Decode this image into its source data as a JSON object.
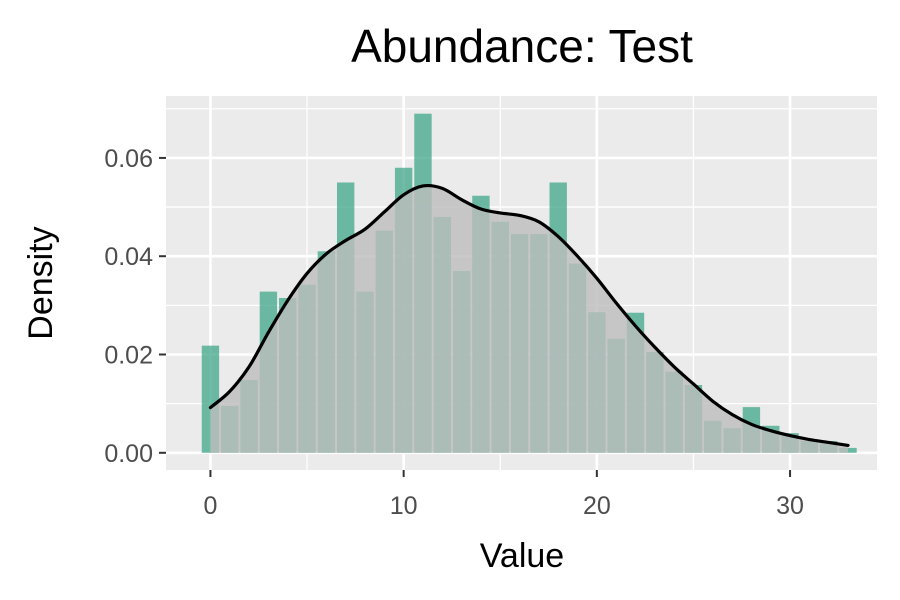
{
  "chart_data": {
    "type": "bar",
    "title": "Abundance: Test",
    "xlabel": "Value",
    "ylabel": "Density",
    "xlim": [
      -2.3,
      34.5
    ],
    "ylim": [
      -0.0035,
      0.0726
    ],
    "x_ticks": [
      {
        "value": 0,
        "label": "0"
      },
      {
        "value": 10,
        "label": "10"
      },
      {
        "value": 20,
        "label": "20"
      },
      {
        "value": 30,
        "label": "30"
      }
    ],
    "y_ticks": [
      {
        "value": 0.0,
        "label": "0.00"
      },
      {
        "value": 0.02,
        "label": "0.02"
      },
      {
        "value": 0.04,
        "label": "0.04"
      },
      {
        "value": 0.06,
        "label": "0.06"
      }
    ],
    "grid": true,
    "histogram": {
      "series_name": "",
      "color": "#3FA58A",
      "opacity": 0.75,
      "bin_width": 1,
      "x": [
        0,
        1,
        2,
        3,
        4,
        5,
        6,
        7,
        8,
        9,
        10,
        11,
        12,
        13,
        14,
        15,
        16,
        17,
        18,
        19,
        20,
        21,
        22,
        23,
        24,
        25,
        26,
        27,
        28,
        29,
        30,
        31,
        32,
        33
      ],
      "values": [
        0.0218,
        0.0095,
        0.0148,
        0.0328,
        0.0315,
        0.0342,
        0.041,
        0.055,
        0.0328,
        0.0452,
        0.058,
        0.069,
        0.048,
        0.037,
        0.0523,
        0.047,
        0.0445,
        0.0445,
        0.055,
        0.0385,
        0.0286,
        0.0232,
        0.0285,
        0.0205,
        0.0165,
        0.0138,
        0.0065,
        0.005,
        0.0093,
        0.0055,
        0.004,
        0.0024,
        0.0024,
        0.001
      ]
    },
    "density": {
      "series_name": "",
      "line_color": "#000000",
      "fill_color": "#bdbdbd",
      "x": [
        0,
        1,
        2,
        3,
        4,
        5,
        6,
        7,
        8,
        9,
        10,
        11,
        12,
        13,
        14,
        15,
        16,
        17,
        18,
        19,
        20,
        21,
        22,
        23,
        24,
        25,
        26,
        27,
        28,
        29,
        30,
        31,
        32,
        33
      ],
      "values": [
        0.0092,
        0.0125,
        0.0175,
        0.0245,
        0.031,
        0.0365,
        0.0405,
        0.0432,
        0.0455,
        0.049,
        0.0525,
        0.0543,
        0.0538,
        0.0515,
        0.0496,
        0.0488,
        0.0483,
        0.047,
        0.044,
        0.04,
        0.0355,
        0.0305,
        0.0258,
        0.0215,
        0.0175,
        0.014,
        0.0105,
        0.0078,
        0.0058,
        0.0045,
        0.0035,
        0.0027,
        0.0021,
        0.0015
      ]
    },
    "colors": {
      "panel_background": "#ebebeb",
      "grid_major": "#ffffff",
      "bar_fill": "#3FA58A",
      "density_line": "#000000",
      "density_fill": "#bdbdbd"
    }
  }
}
